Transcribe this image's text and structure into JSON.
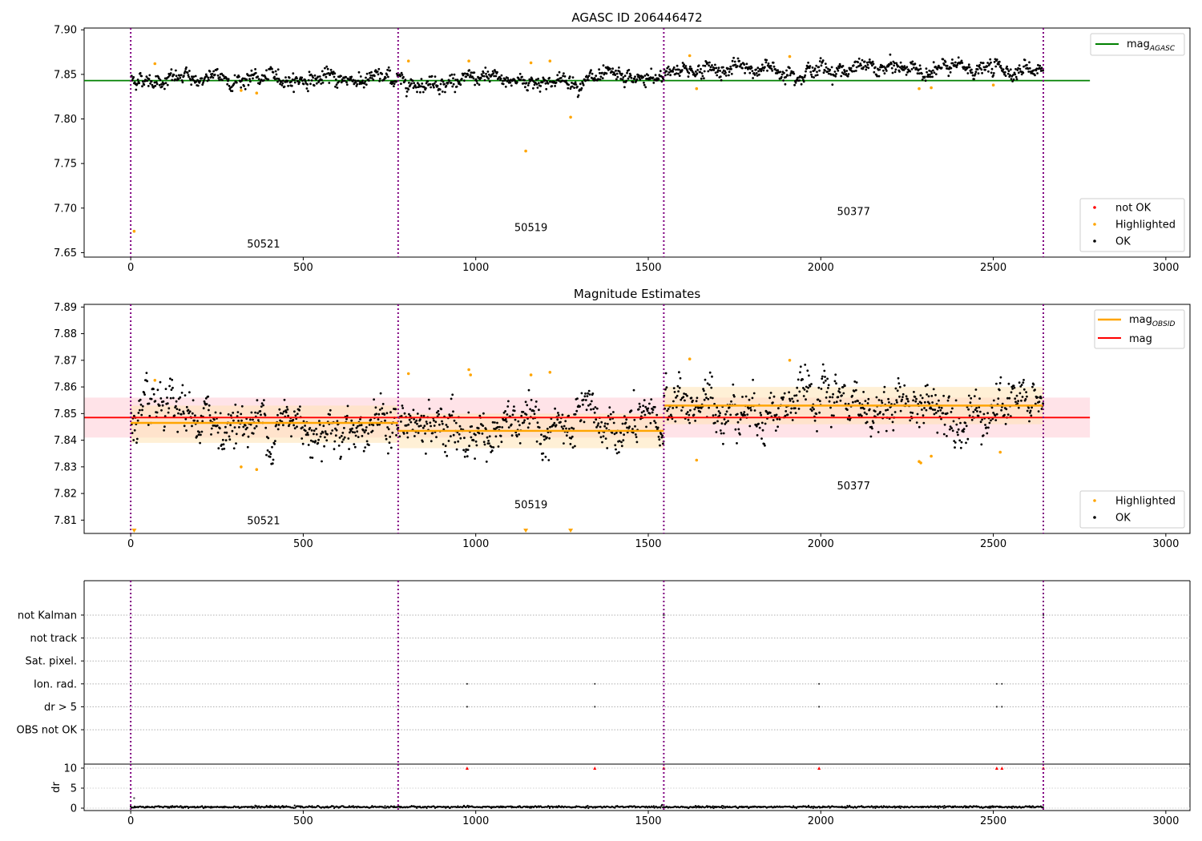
{
  "figure": {
    "title_top": "AGASC ID 206446472",
    "title_middle": "Magnitude Estimates"
  },
  "colors": {
    "ok": "#000000",
    "highlighted": "#ffa500",
    "not_ok": "#ff0000",
    "mag_agasc": "#008000",
    "mag_obsid": "#ffa500",
    "mag": "#ff0000",
    "obs_boundary": "#800080",
    "mag_band": "#ffc0cb",
    "obsid_band": "#ffe4b5"
  },
  "chart_data": [
    {
      "type": "scatter",
      "title": "AGASC ID 206446472",
      "xlabel": "",
      "ylabel": "",
      "xlim": [
        -135,
        3070
      ],
      "ylim": [
        7.645,
        7.902
      ],
      "xticks": [
        0,
        500,
        1000,
        1500,
        2000,
        2500,
        3000
      ],
      "yticks": [
        7.65,
        7.7,
        7.75,
        7.8,
        7.85,
        7.9
      ],
      "ytick_labels": [
        "7.65",
        "7.70",
        "7.75",
        "7.80",
        "7.85",
        "7.90"
      ],
      "obs_boundaries": [
        0,
        775,
        1545,
        2645
      ],
      "observations": [
        {
          "obsid": "50521",
          "x_range": [
            0,
            775
          ],
          "mean": 7.845,
          "label_pos": [
            385,
            7.656
          ]
        },
        {
          "obsid": "50519",
          "x_range": [
            775,
            1545
          ],
          "mean": 7.843,
          "label_pos": [
            1160,
            7.674
          ]
        },
        {
          "obsid": "50377",
          "x_range": [
            1545,
            2645
          ],
          "mean": 7.856,
          "label_pos": [
            2095,
            7.692
          ]
        }
      ],
      "mag_agasc": {
        "value": 7.843,
        "x_range": [
          -135,
          2780
        ]
      },
      "highlighted_points": [
        [
          10,
          7.674
        ],
        [
          70,
          7.862
        ],
        [
          320,
          7.832
        ],
        [
          365,
          7.829
        ],
        [
          805,
          7.865
        ],
        [
          980,
          7.865
        ],
        [
          1145,
          7.764
        ],
        [
          1160,
          7.863
        ],
        [
          1215,
          7.865
        ],
        [
          1275,
          7.802
        ],
        [
          1620,
          7.871
        ],
        [
          1640,
          7.834
        ],
        [
          1910,
          7.87
        ],
        [
          2285,
          7.834
        ],
        [
          2320,
          7.835
        ],
        [
          2500,
          7.838
        ]
      ],
      "legend": {
        "lines": [
          "mag$_{AGASC}$"
        ],
        "markers": [
          "not OK",
          "Highlighted",
          "OK"
        ],
        "placement": "right"
      }
    },
    {
      "type": "scatter",
      "title": "Magnitude Estimates",
      "xlabel": "",
      "ylabel": "",
      "xlim": [
        -135,
        3070
      ],
      "ylim": [
        7.805,
        7.891
      ],
      "xticks": [
        0,
        500,
        1000,
        1500,
        2000,
        2500,
        3000
      ],
      "yticks": [
        7.81,
        7.82,
        7.83,
        7.84,
        7.85,
        7.86,
        7.87,
        7.88,
        7.89
      ],
      "ytick_labels": [
        "7.81",
        "7.82",
        "7.83",
        "7.84",
        "7.85",
        "7.86",
        "7.87",
        "7.88",
        "7.89"
      ],
      "obs_boundaries": [
        0,
        775,
        1545,
        2645
      ],
      "observations": [
        {
          "obsid": "50521",
          "x_range": [
            0,
            775
          ],
          "mean": 7.8465,
          "label_pos": [
            385,
            7.8085
          ]
        },
        {
          "obsid": "50519",
          "x_range": [
            775,
            1545
          ],
          "mean": 7.8435,
          "label_pos": [
            1160,
            7.8145
          ]
        },
        {
          "obsid": "50377",
          "x_range": [
            1545,
            2645
          ],
          "mean": 7.853,
          "label_pos": [
            2095,
            7.8215
          ]
        }
      ],
      "mag": {
        "value": 7.8485,
        "band": [
          7.841,
          7.856
        ],
        "x_range": [
          -135,
          2780
        ]
      },
      "mag_obsid": [
        {
          "x_range": [
            0,
            775
          ],
          "value": 7.8465,
          "band": [
            7.839,
            7.853
          ]
        },
        {
          "x_range": [
            775,
            1545
          ],
          "value": 7.8435,
          "band": [
            7.837,
            7.85
          ]
        },
        {
          "x_range": [
            1545,
            2645
          ],
          "value": 7.853,
          "band": [
            7.846,
            7.86
          ]
        }
      ],
      "highlighted_points": [
        [
          70,
          7.8625
        ],
        [
          320,
          7.83
        ],
        [
          365,
          7.829
        ],
        [
          805,
          7.865
        ],
        [
          980,
          7.8665
        ],
        [
          985,
          7.8645
        ],
        [
          1160,
          7.8645
        ],
        [
          1215,
          7.8655
        ],
        [
          1620,
          7.8705
        ],
        [
          1640,
          7.8325
        ],
        [
          1910,
          7.87
        ],
        [
          2285,
          7.832
        ],
        [
          2290,
          7.8315
        ],
        [
          2320,
          7.834
        ],
        [
          2520,
          7.8355
        ]
      ],
      "out_of_range_markers": [
        10,
        1145,
        1275
      ],
      "legend": {
        "lines": [
          "mag$_{OBSID}$",
          "mag"
        ],
        "markers": [
          "Highlighted",
          "OK"
        ],
        "placement": "right"
      }
    },
    {
      "type": "scatter",
      "title": "",
      "xlabel": "",
      "ylabel": "",
      "xlim": [
        -135,
        3070
      ],
      "ylim": [
        -0.5,
        7.5
      ],
      "flag_categories": [
        "OBS not OK",
        "dr > 5",
        "Ion. rad.",
        "Sat. pixel.",
        "not track",
        "not Kalman"
      ],
      "flag_points": [
        {
          "flag": "Ion. rad.",
          "x": [
            975,
            1345,
            1995,
            2510,
            2525
          ]
        },
        {
          "flag": "dr > 5",
          "x": [
            975,
            1345,
            1995,
            2510,
            2525
          ]
        },
        {
          "flag": "not Kalman",
          "x": [
            1545,
            2645
          ]
        }
      ],
      "obs_boundaries": [
        0,
        775,
        1545,
        2645
      ]
    },
    {
      "type": "scatter",
      "title": "",
      "xlabel": "",
      "ylabel": "dr",
      "xlim": [
        -135,
        3070
      ],
      "ylim": [
        -0.6,
        11
      ],
      "xticks": [
        0,
        500,
        1000,
        1500,
        2000,
        2500,
        3000
      ],
      "yticks": [
        0,
        5,
        10
      ],
      "ytick_labels": [
        "0",
        "5",
        "10"
      ],
      "obs_boundaries": [
        0,
        775,
        1545,
        2645
      ],
      "dr_typical": 0.3,
      "dr_outlier_points": [
        [
          10,
          2.5
        ]
      ],
      "dr_clipped_points_at_10": [
        975,
        1345,
        1545,
        1995,
        2510,
        2525,
        2645
      ]
    }
  ]
}
